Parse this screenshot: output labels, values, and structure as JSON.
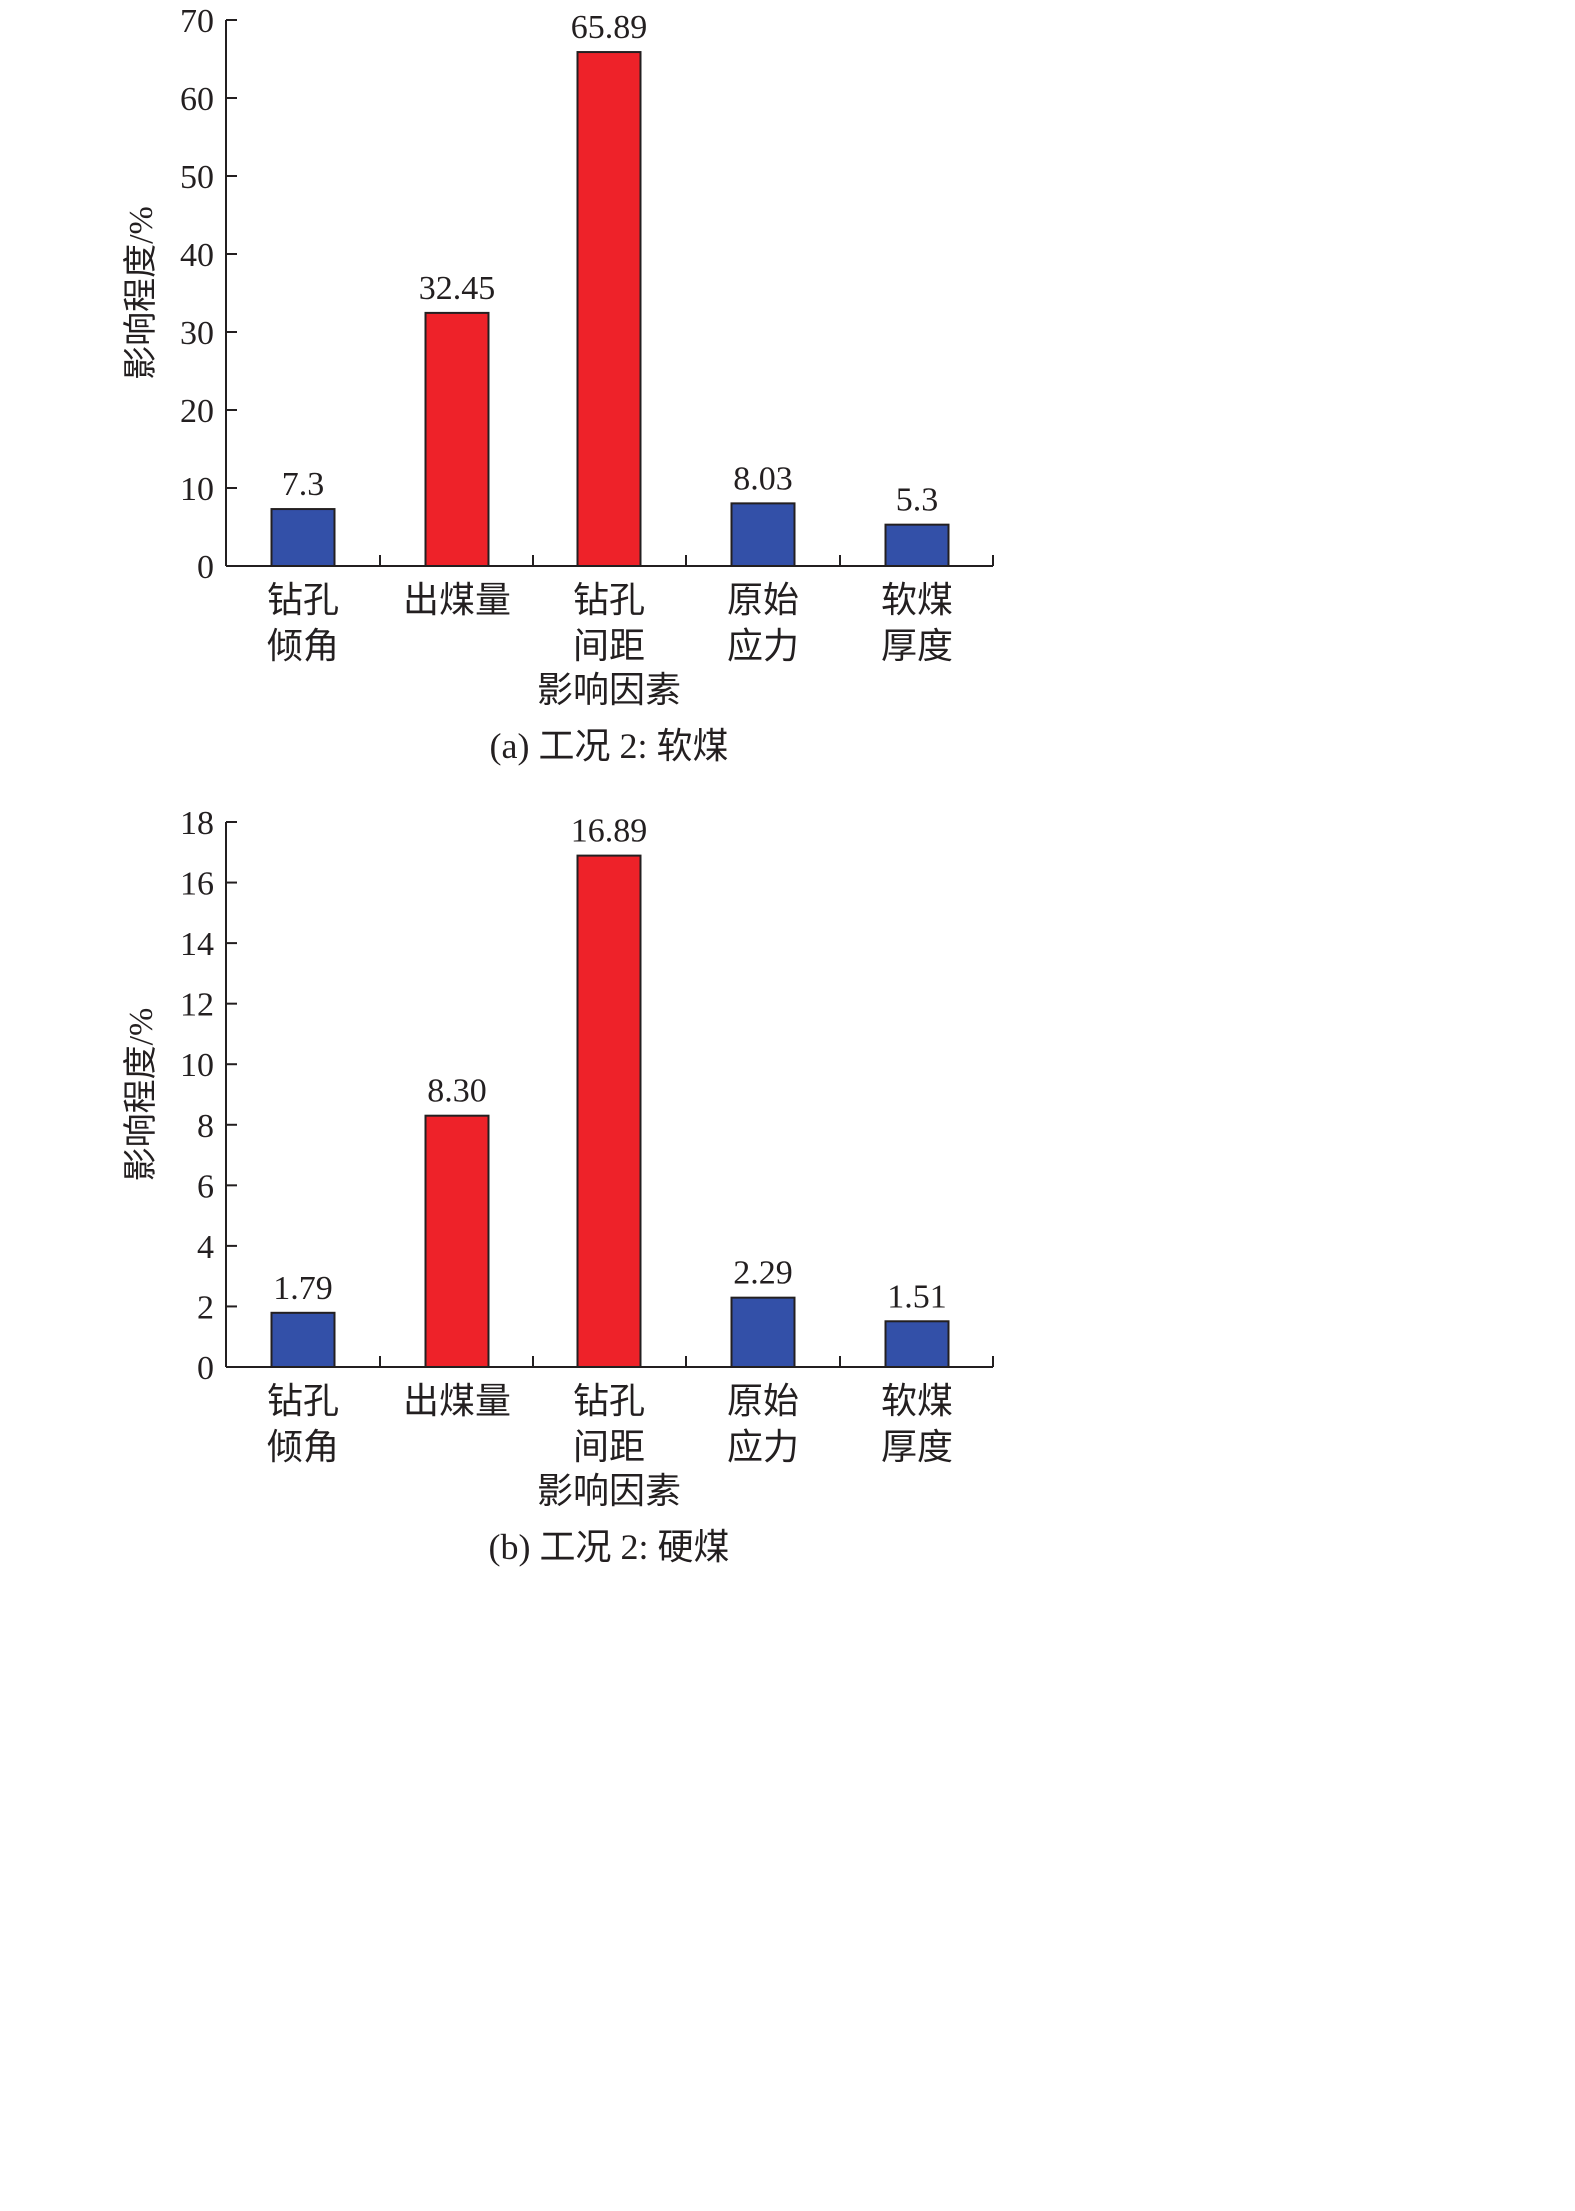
{
  "chart_data": [
    {
      "type": "bar",
      "caption": "(a) 工况 2: 软煤",
      "xlabel": "影响因素",
      "ylabel": "影响程度/%",
      "categories": [
        [
          "钻孔",
          "倾角"
        ],
        [
          "出煤量"
        ],
        [
          "钻孔",
          "间距"
        ],
        [
          "原始",
          "应力"
        ],
        [
          "软煤",
          "厚度"
        ]
      ],
      "values": [
        7.3,
        32.45,
        65.89,
        8.03,
        5.3
      ],
      "value_labels": [
        "7.3",
        "32.45",
        "65.89",
        "8.03",
        "5.3"
      ],
      "bar_colors": [
        "#3350a8",
        "#ee2229",
        "#ee2229",
        "#3350a8",
        "#3350a8"
      ],
      "ylim": [
        0,
        70
      ],
      "yticks": [
        0,
        10,
        20,
        30,
        40,
        50,
        60,
        70
      ],
      "grid": false,
      "legend": "none"
    },
    {
      "type": "bar",
      "caption": "(b) 工况 2: 硬煤",
      "xlabel": "影响因素",
      "ylabel": "影响程度/%",
      "categories": [
        [
          "钻孔",
          "倾角"
        ],
        [
          "出煤量"
        ],
        [
          "钻孔",
          "间距"
        ],
        [
          "原始",
          "应力"
        ],
        [
          "软煤",
          "厚度"
        ]
      ],
      "values": [
        1.79,
        8.3,
        16.89,
        2.29,
        1.51
      ],
      "value_labels": [
        "1.79",
        "8.30",
        "16.89",
        "2.29",
        "1.51"
      ],
      "bar_colors": [
        "#3350a8",
        "#ee2229",
        "#ee2229",
        "#3350a8",
        "#3350a8"
      ],
      "ylim": [
        0,
        18
      ],
      "yticks": [
        0,
        2,
        4,
        6,
        8,
        10,
        12,
        14,
        16,
        18
      ],
      "grid": false,
      "legend": "none"
    }
  ]
}
